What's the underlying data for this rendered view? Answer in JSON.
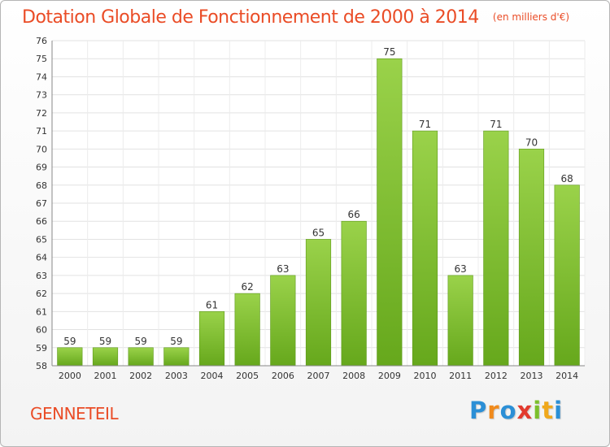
{
  "chart_data": {
    "type": "bar",
    "title": "Dotation Globale de Fonctionnement de 2000 à 2014",
    "subtitle": "(en milliers d'€)",
    "categories": [
      "2000",
      "2001",
      "2002",
      "2003",
      "2004",
      "2005",
      "2006",
      "2007",
      "2008",
      "2009",
      "2010",
      "2011",
      "2012",
      "2013",
      "2014"
    ],
    "values": [
      59,
      59,
      59,
      59,
      61,
      62,
      63,
      65,
      66,
      75,
      71,
      63,
      71,
      70,
      68
    ],
    "ylim": [
      58,
      76
    ],
    "yticks": [
      58,
      59,
      60,
      61,
      62,
      63,
      64,
      65,
      66,
      67,
      68,
      69,
      70,
      71,
      72,
      73,
      74,
      75,
      76
    ],
    "xlabel": "",
    "ylabel": "",
    "grid": true,
    "bar_color": "#7cbf2c"
  },
  "footer": {
    "commune": "GENNETEIL",
    "logo_letters": [
      "P",
      "r",
      "o",
      "x",
      "i",
      "t",
      "i"
    ],
    "logo_colors": [
      "#2b8fd6",
      "#f08a1c",
      "#2b8fd6",
      "#e23a2e",
      "#7cbf2c",
      "#f0a81c",
      "#2b8fd6"
    ]
  }
}
